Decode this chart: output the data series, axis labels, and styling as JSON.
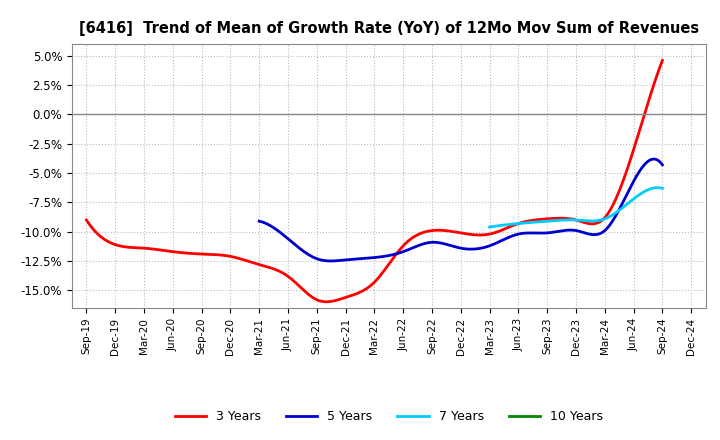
{
  "title": "[6416]  Trend of Mean of Growth Rate (YoY) of 12Mo Mov Sum of Revenues",
  "ylim": [
    -0.165,
    0.06
  ],
  "yticks": [
    0.05,
    0.025,
    0.0,
    -0.025,
    -0.05,
    -0.075,
    -0.1,
    -0.125,
    -0.15
  ],
  "ytick_labels": [
    "5.0%",
    "2.5%",
    "0.0%",
    "-2.5%",
    "-5.0%",
    "-7.5%",
    "-10.0%",
    "-12.5%",
    "-15.0%"
  ],
  "background_color": "#ffffff",
  "grid_color": "#aaaaaa",
  "x_labels": [
    "Sep-19",
    "Dec-19",
    "Mar-20",
    "Jun-20",
    "Sep-20",
    "Dec-20",
    "Mar-21",
    "Jun-21",
    "Sep-21",
    "Dec-21",
    "Mar-22",
    "Jun-22",
    "Sep-22",
    "Dec-22",
    "Mar-23",
    "Jun-23",
    "Sep-23",
    "Dec-23",
    "Mar-24",
    "Jun-24",
    "Sep-24",
    "Dec-24"
  ],
  "series": {
    "3yr": {
      "color": "#ff0000",
      "label": "3 Years",
      "x": [
        "Sep-19",
        "Dec-19",
        "Mar-20",
        "Jun-20",
        "Sep-20",
        "Dec-20",
        "Mar-21",
        "Jun-21",
        "Sep-21",
        "Dec-21",
        "Mar-22",
        "Jun-22",
        "Sep-22",
        "Dec-22",
        "Mar-23",
        "Jun-23",
        "Sep-23",
        "Dec-23",
        "Mar-24",
        "Jun-24",
        "Sep-24"
      ],
      "y": [
        -0.09,
        -0.111,
        -0.114,
        -0.117,
        -0.119,
        -0.121,
        -0.128,
        -0.138,
        -0.158,
        -0.156,
        -0.143,
        -0.112,
        -0.099,
        -0.101,
        -0.102,
        -0.093,
        -0.089,
        -0.09,
        -0.088,
        -0.03,
        0.046
      ]
    },
    "5yr": {
      "color": "#0000cc",
      "label": "5 Years",
      "x": [
        "Mar-21",
        "Jun-21",
        "Sep-21",
        "Dec-21",
        "Mar-22",
        "Jun-22",
        "Sep-22",
        "Dec-22",
        "Mar-23",
        "Jun-23",
        "Sep-23",
        "Dec-23",
        "Mar-24",
        "Jun-24",
        "Sep-24"
      ],
      "y": [
        -0.091,
        -0.106,
        -0.123,
        -0.124,
        -0.122,
        -0.117,
        -0.109,
        -0.114,
        -0.112,
        -0.102,
        -0.101,
        -0.099,
        -0.099,
        -0.057,
        -0.043
      ]
    },
    "7yr": {
      "color": "#00ccff",
      "label": "7 Years",
      "x": [
        "Mar-23",
        "Jun-23",
        "Sep-23",
        "Dec-23",
        "Mar-24",
        "Jun-24",
        "Sep-24"
      ],
      "y": [
        -0.096,
        -0.093,
        -0.091,
        -0.09,
        -0.089,
        -0.072,
        -0.063
      ]
    },
    "10yr": {
      "color": "#008800",
      "label": "10 Years",
      "x": [],
      "y": []
    }
  }
}
